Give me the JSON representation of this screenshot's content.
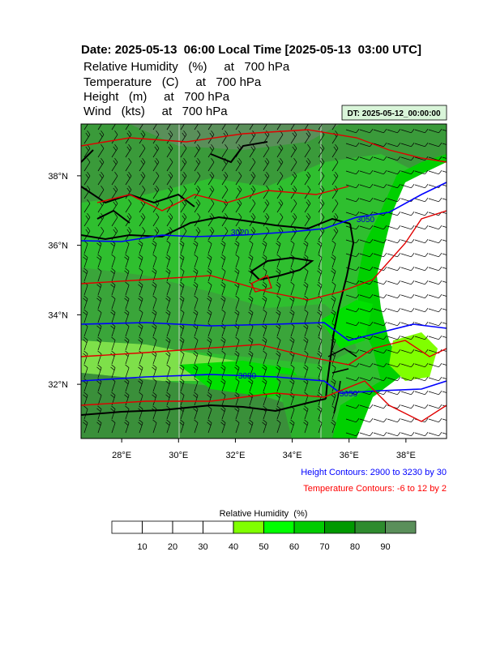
{
  "title": "Date: 2025-05-13  06:00 Local Time [2025-05-13  03:00 UTC]",
  "fields": [
    "Relative Humidity   (%)     at   700 hPa",
    "Temperature   (C)     at   700 hPa",
    "Height   (m)     at   700 hPa",
    "Wind   (kts)     at   700 hPa"
  ],
  "dt_label": "DT: 2025-05-12_00:00:00",
  "map": {
    "lon_range": [
      26.57,
      39.43
    ],
    "lat_range": [
      30.44,
      39.49
    ],
    "lon_ticks": [
      {
        "value": 28,
        "label": "28°E"
      },
      {
        "value": 30,
        "label": "30°E"
      },
      {
        "value": 32,
        "label": "32°E"
      },
      {
        "value": 34,
        "label": "34°E"
      },
      {
        "value": 36,
        "label": "36°E"
      },
      {
        "value": 38,
        "label": "38°E"
      }
    ],
    "lat_ticks": [
      {
        "value": 38,
        "label": "38°N"
      },
      {
        "value": 36,
        "label": "36°N"
      },
      {
        "value": 34,
        "label": "34°N"
      },
      {
        "value": 32,
        "label": "32°N"
      }
    ],
    "contour_labels": [
      "3020",
      "3050",
      "3080",
      "3050"
    ]
  },
  "notes": [
    "Height Contours: 2900 to 3230 by 30",
    "Temperature Contours: -6 to 12 by 2"
  ],
  "colorbar": {
    "title": "Relative Humidity  (%)",
    "ticks": [
      10,
      20,
      30,
      40,
      50,
      60,
      70,
      80,
      90
    ],
    "colors": [
      "#ffffff",
      "#ffffff",
      "#ffffff",
      "#ffffff",
      "#80ff00",
      "#00ff00",
      "#00cc00",
      "#009900",
      "#2e8b2e",
      "#5a8f5a"
    ]
  }
}
